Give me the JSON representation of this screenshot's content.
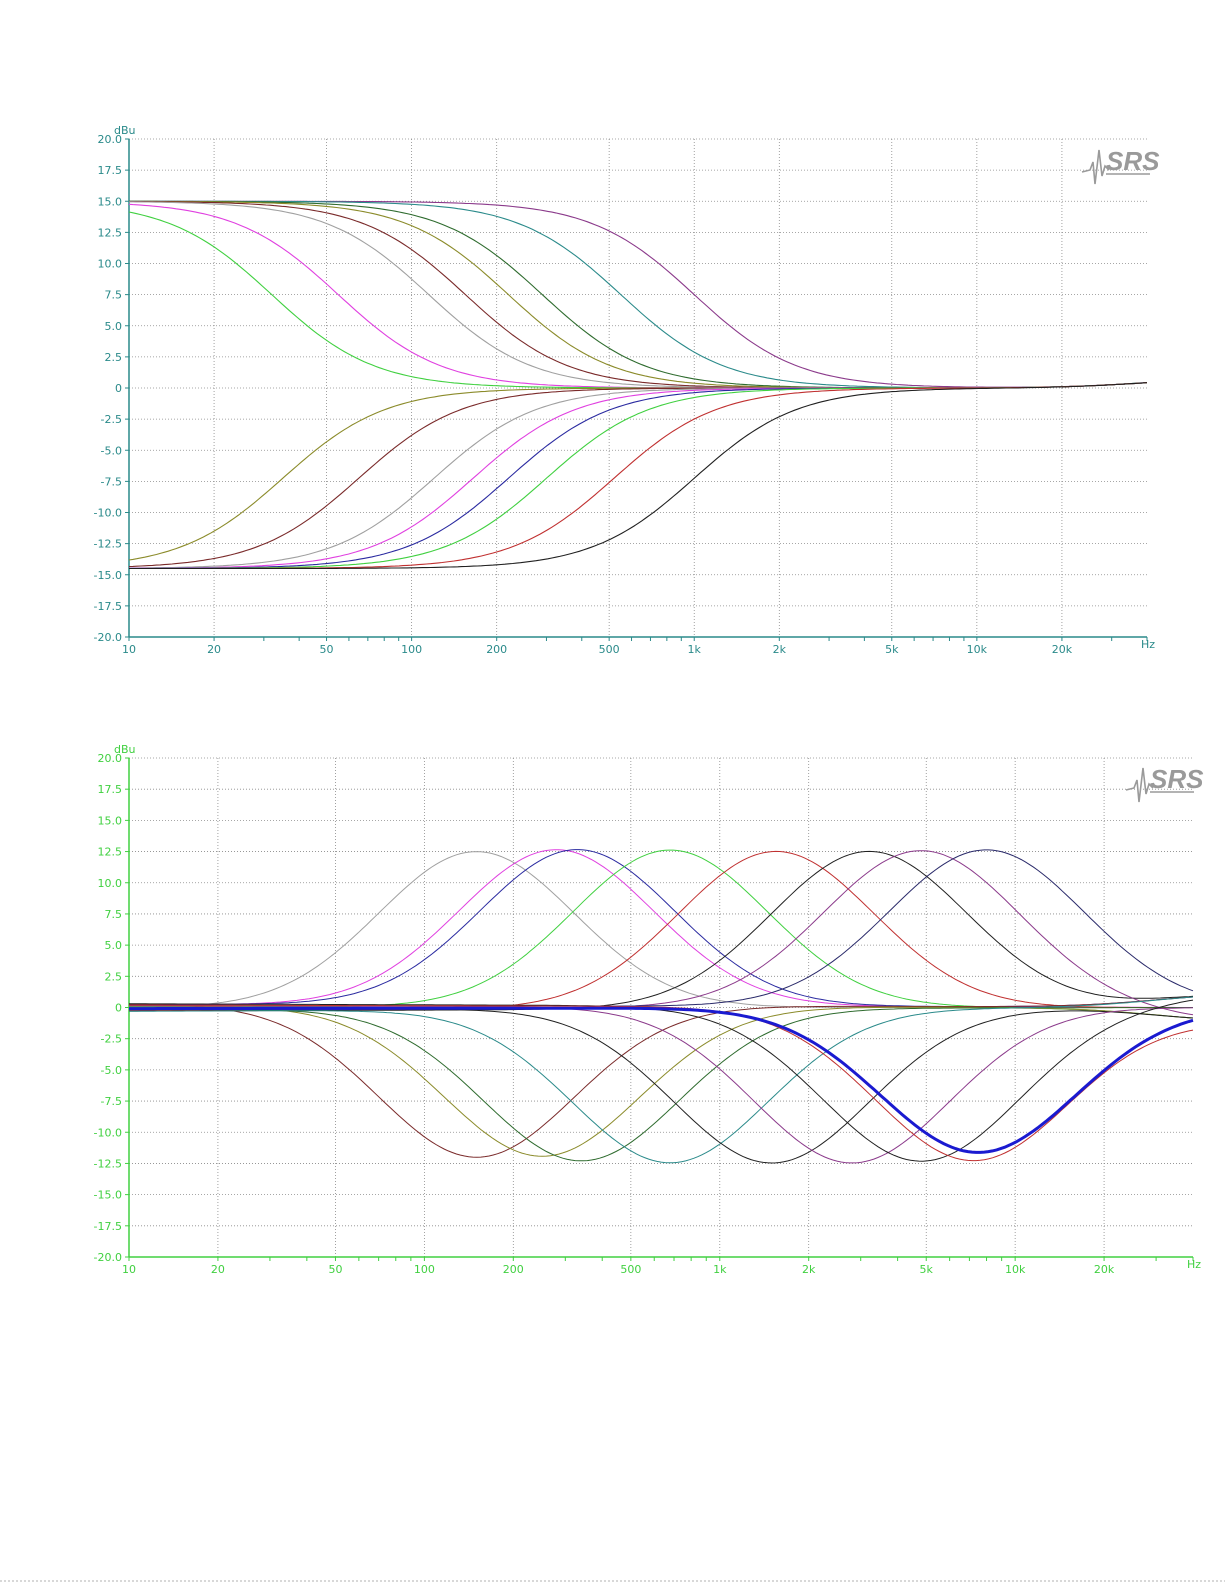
{
  "page": {
    "background": "#ffffff"
  },
  "logo": {
    "text": "SRS",
    "color": "#9a9a9a"
  },
  "chart_data": [
    {
      "type": "line",
      "name": "top-chart",
      "scale_x": "log",
      "xlim": [
        10,
        40000
      ],
      "ylim": [
        -20,
        20
      ],
      "y_unit_label": "dBu",
      "x_unit_label": "Hz",
      "axis_color": "#2a8a8a",
      "grid": true,
      "y_ticks": [
        "20.0",
        "17.5",
        "15.0",
        "12.5",
        "10.0",
        "7.5",
        "5.0",
        "2.5",
        "0",
        "-2.5",
        "-5.0",
        "-7.5",
        "-10.0",
        "-12.5",
        "-15.0",
        "-17.5",
        "-20.0"
      ],
      "x_ticks": [
        {
          "v": 10,
          "label": "10"
        },
        {
          "v": 20,
          "label": "20"
        },
        {
          "v": 50,
          "label": "50"
        },
        {
          "v": 100,
          "label": "100"
        },
        {
          "v": 200,
          "label": "200"
        },
        {
          "v": 500,
          "label": "500"
        },
        {
          "v": 1000,
          "label": "1k"
        },
        {
          "v": 2000,
          "label": "2k"
        },
        {
          "v": 5000,
          "label": "5k"
        },
        {
          "v": 10000,
          "label": "10k"
        },
        {
          "v": 20000,
          "label": "20k"
        }
      ],
      "series": [
        {
          "kind": "shelf",
          "gain": 15,
          "f0": 1000,
          "color": "#8b3a8b"
        },
        {
          "kind": "shelf",
          "gain": 15,
          "f0": 550,
          "color": "#2a8a8a"
        },
        {
          "kind": "shelf",
          "gain": 15,
          "f0": 290,
          "color": "#2e6b2e"
        },
        {
          "kind": "shelf",
          "gain": 15,
          "f0": 220,
          "color": "#8b8b2a"
        },
        {
          "kind": "shelf",
          "gain": 15,
          "f0": 155,
          "color": "#7a2a2a"
        },
        {
          "kind": "shelf",
          "gain": 15,
          "f0": 115,
          "color": "#a0a0a0"
        },
        {
          "kind": "shelf",
          "gain": 15,
          "f0": 55,
          "color": "#e040e0"
        },
        {
          "kind": "shelf",
          "gain": 15,
          "f0": 32,
          "color": "#40d040"
        },
        {
          "kind": "shelf",
          "gain": -14.5,
          "f0": 35,
          "color": "#8b8b2a"
        },
        {
          "kind": "shelf",
          "gain": -14.5,
          "f0": 65,
          "color": "#7a2a2a"
        },
        {
          "kind": "shelf",
          "gain": -14.5,
          "f0": 120,
          "color": "#a0a0a0"
        },
        {
          "kind": "shelf",
          "gain": -14.5,
          "f0": 165,
          "color": "#e040e0"
        },
        {
          "kind": "shelf",
          "gain": -14.5,
          "f0": 220,
          "color": "#2a2aa0"
        },
        {
          "kind": "shelf",
          "gain": -14.5,
          "f0": 300,
          "color": "#40d040"
        },
        {
          "kind": "shelf",
          "gain": -14.5,
          "f0": 520,
          "color": "#c03030"
        },
        {
          "kind": "shelf",
          "gain": -14.5,
          "f0": 1000,
          "color": "#202020"
        }
      ]
    },
    {
      "type": "line",
      "name": "bottom-chart",
      "scale_x": "log",
      "xlim": [
        10,
        40000
      ],
      "ylim": [
        -20,
        20
      ],
      "y_unit_label": "dBu",
      "x_unit_label": "Hz",
      "axis_color": "#40d040",
      "grid": true,
      "y_ticks": [
        "20.0",
        "17.5",
        "15.0",
        "12.5",
        "10.0",
        "7.5",
        "5.0",
        "2.5",
        "0",
        "-2.5",
        "-5.0",
        "-7.5",
        "-10.0",
        "-12.5",
        "-15.0",
        "-17.5",
        "-20.0"
      ],
      "x_ticks": [
        {
          "v": 10,
          "label": "10"
        },
        {
          "v": 20,
          "label": "20"
        },
        {
          "v": 50,
          "label": "50"
        },
        {
          "v": 100,
          "label": "100"
        },
        {
          "v": 200,
          "label": "200"
        },
        {
          "v": 500,
          "label": "500"
        },
        {
          "v": 1000,
          "label": "1k"
        },
        {
          "v": 2000,
          "label": "2k"
        },
        {
          "v": 5000,
          "label": "5k"
        },
        {
          "v": 10000,
          "label": "10k"
        },
        {
          "v": 20000,
          "label": "20k"
        }
      ],
      "series": [
        {
          "kind": "peak",
          "gain": 12.5,
          "fc": 150,
          "color": "#a0a0a0",
          "width": 1
        },
        {
          "kind": "peak",
          "gain": 12.5,
          "fc": 280,
          "color": "#e040e0",
          "width": 1
        },
        {
          "kind": "peak",
          "gain": 12.5,
          "fc": 330,
          "color": "#2a2aa0",
          "width": 1
        },
        {
          "kind": "peak",
          "gain": 12.6,
          "fc": 680,
          "color": "#40d040",
          "width": 1
        },
        {
          "kind": "peak",
          "gain": 12.6,
          "fc": 1550,
          "color": "#c03030",
          "width": 1
        },
        {
          "kind": "peak",
          "gain": 12.6,
          "fc": 3200,
          "color": "#202020",
          "width": 1
        },
        {
          "kind": "peak",
          "gain": 12.6,
          "fc": 4800,
          "color": "#8b3a8b",
          "width": 1
        },
        {
          "kind": "peak",
          "gain": 12.6,
          "fc": 8000,
          "color": "#2a2a6a",
          "width": 1
        },
        {
          "kind": "peak",
          "gain": -12.2,
          "fc": 150,
          "color": "#7a2a2a",
          "width": 1
        },
        {
          "kind": "peak",
          "gain": -12.0,
          "fc": 250,
          "color": "#8b8b2a",
          "width": 1
        },
        {
          "kind": "peak",
          "gain": -12.2,
          "fc": 340,
          "color": "#2e6b2e",
          "width": 1
        },
        {
          "kind": "peak",
          "gain": -12.3,
          "fc": 680,
          "color": "#2a8a8a",
          "width": 1
        },
        {
          "kind": "peak",
          "gain": -12.4,
          "fc": 1500,
          "color": "#202020",
          "width": 1
        },
        {
          "kind": "peak",
          "gain": -12.5,
          "fc": 2800,
          "color": "#8b3a8b",
          "width": 1
        },
        {
          "kind": "peak",
          "gain": -12.4,
          "fc": 4800,
          "color": "#202020",
          "width": 1
        },
        {
          "kind": "peak",
          "gain": -12.3,
          "fc": 7200,
          "color": "#c03030",
          "width": 1
        },
        {
          "kind": "peak",
          "gain": -11.6,
          "fc": 7500,
          "color": "#1a1ad0",
          "width": 3
        }
      ]
    }
  ]
}
